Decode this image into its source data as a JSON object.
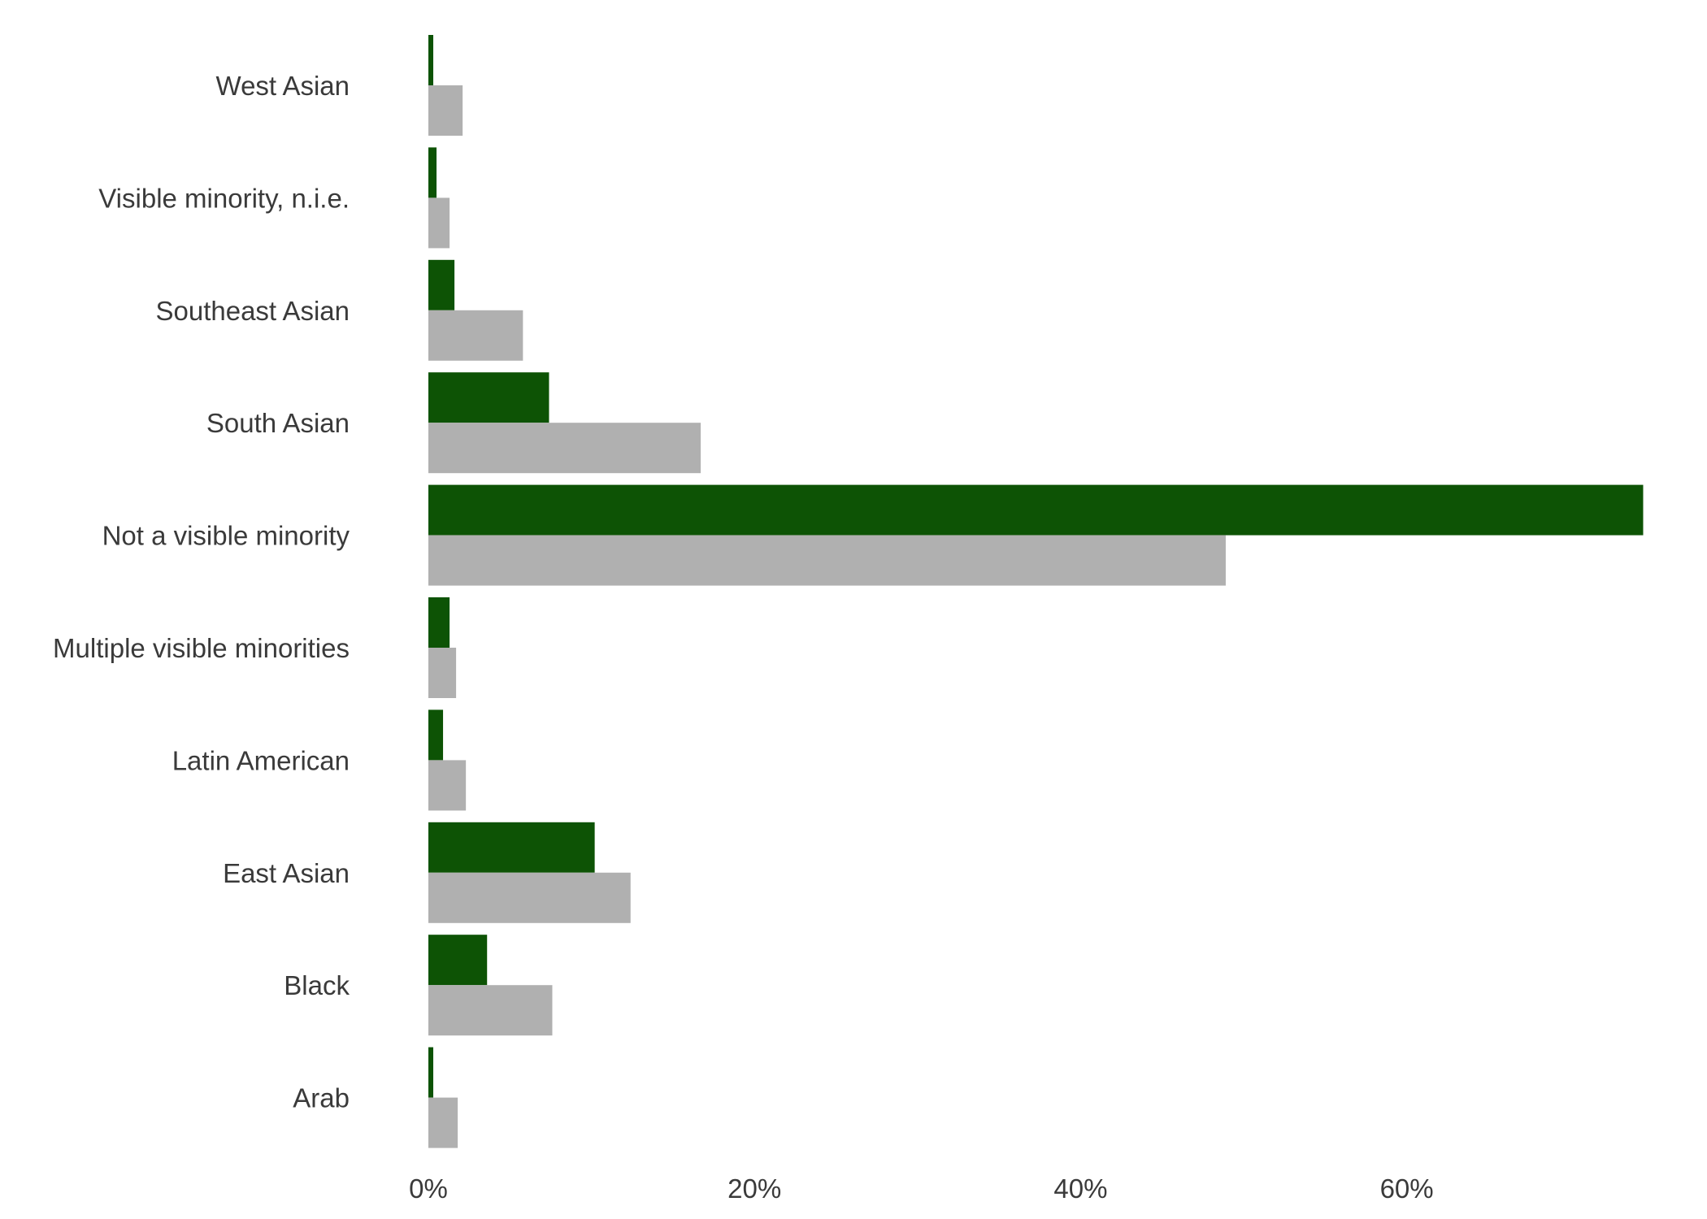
{
  "chart_data": {
    "type": "bar",
    "orientation": "horizontal",
    "categories": [
      "West Asian",
      "Visible minority, n.i.e.",
      "Southeast Asian",
      "South Asian",
      "Not a visible minority",
      "Multiple visible minorities",
      "Latin American",
      "East Asian",
      "Black",
      "Arab"
    ],
    "series": [
      {
        "color": "#0d5305",
        "values": [
          0.3,
          0.5,
          1.6,
          7.4,
          74.5,
          1.3,
          0.9,
          10.2,
          3.6,
          0.3
        ]
      },
      {
        "color": "#b0b0b0",
        "values": [
          2.1,
          1.3,
          5.8,
          16.7,
          48.9,
          1.7,
          2.3,
          12.4,
          7.6,
          1.8
        ]
      }
    ],
    "xticks": [
      0,
      20,
      40,
      60
    ],
    "xtick_labels": [
      "0%",
      "20%",
      "40%",
      "60%"
    ],
    "xlim": [
      0,
      75
    ],
    "grid": false,
    "legend": "none",
    "title": "",
    "xlabel": "",
    "ylabel": ""
  }
}
